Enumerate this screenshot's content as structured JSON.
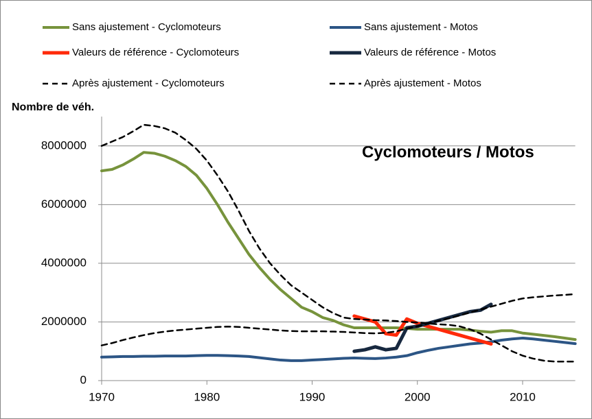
{
  "chart_data": {
    "type": "line",
    "y_label": "Nombre de véh.",
    "annotation": "Cyclomoteurs / Motos",
    "legend": "top",
    "grid": true,
    "xlim": [
      1970,
      2015
    ],
    "xticks": [
      1970,
      1980,
      1990,
      2000,
      2010
    ],
    "ylim": [
      0,
      9000000
    ],
    "yticks": [
      0,
      2000000,
      4000000,
      6000000,
      8000000
    ],
    "x": [
      1970,
      1971,
      1972,
      1973,
      1974,
      1975,
      1976,
      1977,
      1978,
      1979,
      1980,
      1981,
      1982,
      1983,
      1984,
      1985,
      1986,
      1987,
      1988,
      1989,
      1990,
      1991,
      1992,
      1993,
      1994,
      1995,
      1996,
      1997,
      1998,
      1999,
      2000,
      2001,
      2002,
      2003,
      2004,
      2005,
      2006,
      2007,
      2008,
      2009,
      2010,
      2011,
      2012,
      2013,
      2014,
      2015
    ],
    "series": [
      {
        "name": "Sans ajustement - Cyclomoteurs",
        "color": "#77933c",
        "width": 4,
        "dashed": false,
        "values": [
          7150000,
          7200000,
          7350000,
          7550000,
          7780000,
          7750000,
          7650000,
          7500000,
          7300000,
          7000000,
          6550000,
          6000000,
          5400000,
          4850000,
          4300000,
          3850000,
          3450000,
          3100000,
          2800000,
          2500000,
          2350000,
          2150000,
          2050000,
          1900000,
          1800000,
          1800000,
          1800000,
          1800000,
          1800000,
          1780000,
          1750000,
          1750000,
          1750000,
          1750000,
          1750000,
          1720000,
          1680000,
          1650000,
          1700000,
          1700000,
          1620000,
          1580000,
          1540000,
          1500000,
          1450000,
          1400000
        ]
      },
      {
        "name": "Sans ajustement - Motos",
        "color": "#2c5585",
        "width": 4,
        "dashed": false,
        "values": [
          800000,
          810000,
          820000,
          820000,
          830000,
          830000,
          840000,
          840000,
          840000,
          850000,
          860000,
          860000,
          850000,
          840000,
          820000,
          780000,
          740000,
          700000,
          680000,
          680000,
          700000,
          720000,
          740000,
          760000,
          770000,
          760000,
          750000,
          770000,
          800000,
          850000,
          950000,
          1030000,
          1100000,
          1150000,
          1200000,
          1250000,
          1280000,
          1320000,
          1380000,
          1420000,
          1450000,
          1420000,
          1380000,
          1340000,
          1300000,
          1260000
        ]
      },
      {
        "name": "Valeurs de référence - Cyclomoteurs",
        "color": "#ff2a0a",
        "width": 5,
        "dashed": false,
        "values": [
          null,
          null,
          null,
          null,
          null,
          null,
          null,
          null,
          null,
          null,
          null,
          null,
          null,
          null,
          null,
          null,
          null,
          null,
          null,
          null,
          null,
          null,
          null,
          null,
          2200000,
          2100000,
          2000000,
          1600000,
          1550000,
          2100000,
          1950000,
          1850000,
          1750000,
          1650000,
          1550000,
          1450000,
          1350000,
          1250000,
          null,
          null,
          null,
          null,
          null,
          null,
          null,
          null
        ]
      },
      {
        "name": "Valeurs de référence - Motos",
        "color": "#17283f",
        "width": 5,
        "dashed": false,
        "values": [
          null,
          null,
          null,
          null,
          null,
          null,
          null,
          null,
          null,
          null,
          null,
          null,
          null,
          null,
          null,
          null,
          null,
          null,
          null,
          null,
          null,
          null,
          null,
          null,
          1000000,
          1050000,
          1150000,
          1050000,
          1100000,
          1800000,
          1850000,
          1950000,
          2050000,
          2150000,
          2250000,
          2350000,
          2400000,
          2600000,
          null,
          null,
          null,
          null,
          null,
          null,
          null,
          null
        ]
      },
      {
        "name": "Après ajustement - Cyclomoteurs",
        "color": "#000000",
        "width": 2.5,
        "dashed": true,
        "values": [
          8000000,
          8150000,
          8300000,
          8500000,
          8720000,
          8680000,
          8600000,
          8450000,
          8200000,
          7900000,
          7500000,
          7000000,
          6450000,
          5800000,
          5100000,
          4500000,
          4000000,
          3600000,
          3250000,
          3000000,
          2750000,
          2500000,
          2300000,
          2150000,
          2100000,
          2080000,
          2060000,
          2050000,
          2030000,
          2000000,
          1980000,
          1950000,
          1920000,
          1900000,
          1850000,
          1750000,
          1600000,
          1400000,
          1200000,
          1000000,
          850000,
          750000,
          680000,
          650000,
          650000,
          650000
        ]
      },
      {
        "name": "Après ajustement - Motos",
        "color": "#000000",
        "width": 2.5,
        "dashed": true,
        "values": [
          1200000,
          1280000,
          1380000,
          1470000,
          1550000,
          1620000,
          1670000,
          1710000,
          1740000,
          1770000,
          1800000,
          1830000,
          1840000,
          1830000,
          1800000,
          1770000,
          1740000,
          1710000,
          1690000,
          1680000,
          1680000,
          1680000,
          1670000,
          1660000,
          1640000,
          1620000,
          1610000,
          1630000,
          1680000,
          1770000,
          1850000,
          1950000,
          2040000,
          2120000,
          2220000,
          2320000,
          2420000,
          2520000,
          2620000,
          2720000,
          2800000,
          2840000,
          2870000,
          2900000,
          2920000,
          2950000
        ]
      }
    ]
  }
}
